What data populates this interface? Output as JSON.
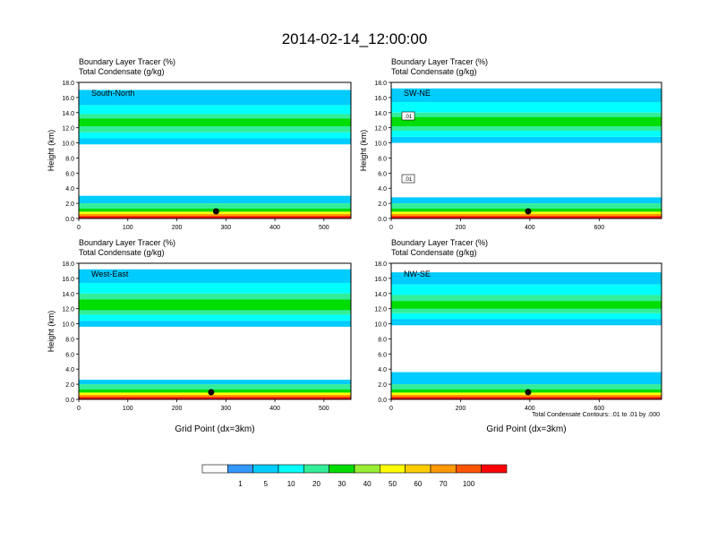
{
  "figure": {
    "title": "2014-02-14_12:00:00",
    "x_axis_label": "Grid Point (dx=3km)",
    "contour_note": "Total Condensate Contours: .01 to .01 by .000",
    "colorbar": {
      "levels": [
        "1",
        "5",
        "10",
        "20",
        "30",
        "40",
        "50",
        "60",
        "70",
        "100"
      ],
      "colors": [
        "#ffffff",
        "#3399ff",
        "#00ccff",
        "#00ffff",
        "#33ee99",
        "#00dd00",
        "#99ee33",
        "#ffff00",
        "#ffcc00",
        "#ff9900",
        "#ff5500",
        "#ff0000"
      ]
    }
  },
  "chart_data": [
    {
      "type": "heatmap",
      "title": "South-North",
      "title_line1": "Boundary Layer Tracer   (%)",
      "title_line2": "Total Condensate   (g/kg)",
      "ylabel": "Height (km)",
      "xlabel": "",
      "xlim": [
        0,
        555
      ],
      "ylim": [
        0,
        18
      ],
      "x_ticks": [
        "0",
        "100",
        "200",
        "300",
        "400",
        "500"
      ],
      "y_ticks": [
        "0.0",
        "2.0",
        "4.0",
        "6.0",
        "8.0",
        "10.0",
        "12.0",
        "14.0",
        "16.0",
        "18.0"
      ],
      "marker_x": 280,
      "contour_labels": [],
      "bands": [
        {
          "y": [
            0,
            0.3
          ],
          "value": 100
        },
        {
          "y": [
            0.3,
            0.6
          ],
          "value": 70
        },
        {
          "y": [
            0.6,
            0.9
          ],
          "value": 50
        },
        {
          "y": [
            0.9,
            1.3
          ],
          "value": 30
        },
        {
          "y": [
            1.3,
            2.0
          ],
          "value": 20
        },
        {
          "y": [
            2.0,
            3.0
          ],
          "value": 5
        },
        {
          "y": [
            9.8,
            10.6
          ],
          "value": 5
        },
        {
          "y": [
            10.6,
            11.4
          ],
          "value": 10
        },
        {
          "y": [
            11.4,
            13.8
          ],
          "value": 20
        },
        {
          "y": [
            12.2,
            13.2
          ],
          "value": 30
        },
        {
          "y": [
            13.8,
            15.0
          ],
          "value": 10
        },
        {
          "y": [
            15.0,
            17.0
          ],
          "value": 5
        }
      ]
    },
    {
      "type": "heatmap",
      "title": "SW-NE",
      "title_line1": "Boundary Layer Tracer   (%)",
      "title_line2": "Total Condensate   (g/kg)",
      "ylabel": "Height (km)",
      "xlabel": "",
      "xlim": [
        0,
        780
      ],
      "ylim": [
        0,
        18
      ],
      "x_ticks": [
        "0",
        "200",
        "400",
        "600"
      ],
      "y_ticks": [
        "0.0",
        "2.0",
        "4.0",
        "6.0",
        "8.0",
        "10.0",
        "12.0",
        "14.0",
        "16.0",
        "18.0"
      ],
      "marker_x": 395,
      "contour_labels": [
        ".01",
        ".01"
      ],
      "bands": [
        {
          "y": [
            0,
            0.3
          ],
          "value": 100
        },
        {
          "y": [
            0.3,
            0.6
          ],
          "value": 70
        },
        {
          "y": [
            0.6,
            0.9
          ],
          "value": 50
        },
        {
          "y": [
            0.9,
            1.3
          ],
          "value": 30
        },
        {
          "y": [
            1.3,
            2.0
          ],
          "value": 20
        },
        {
          "y": [
            2.0,
            2.8
          ],
          "value": 5
        },
        {
          "y": [
            10.0,
            10.8
          ],
          "value": 5
        },
        {
          "y": [
            10.8,
            11.6
          ],
          "value": 10
        },
        {
          "y": [
            11.6,
            14.0
          ],
          "value": 20
        },
        {
          "y": [
            12.2,
            13.4
          ],
          "value": 30
        },
        {
          "y": [
            14.0,
            15.4
          ],
          "value": 10
        },
        {
          "y": [
            15.4,
            17.2
          ],
          "value": 5
        }
      ]
    },
    {
      "type": "heatmap",
      "title": "West-East",
      "title_line1": "Boundary Layer Tracer   (%)",
      "title_line2": "Total Condensate   (g/kg)",
      "ylabel": "Height (km)",
      "xlabel": "Grid Point (dx=3km)",
      "xlim": [
        0,
        555
      ],
      "ylim": [
        0,
        18
      ],
      "x_ticks": [
        "0",
        "100",
        "200",
        "300",
        "400",
        "500"
      ],
      "y_ticks": [
        "0.0",
        "2.0",
        "4.0",
        "6.0",
        "8.0",
        "10.0",
        "12.0",
        "14.0",
        "16.0",
        "18.0"
      ],
      "marker_x": 270,
      "contour_labels": [],
      "bands": [
        {
          "y": [
            0,
            0.3
          ],
          "value": 100
        },
        {
          "y": [
            0.3,
            0.6
          ],
          "value": 70
        },
        {
          "y": [
            0.6,
            0.9
          ],
          "value": 50
        },
        {
          "y": [
            0.9,
            1.3
          ],
          "value": 30
        },
        {
          "y": [
            1.3,
            2.0
          ],
          "value": 20
        },
        {
          "y": [
            2.0,
            2.6
          ],
          "value": 5
        },
        {
          "y": [
            9.6,
            10.4
          ],
          "value": 5
        },
        {
          "y": [
            10.4,
            11.2
          ],
          "value": 10
        },
        {
          "y": [
            11.2,
            14.0
          ],
          "value": 20
        },
        {
          "y": [
            11.8,
            13.2
          ],
          "value": 30
        },
        {
          "y": [
            14.0,
            15.4
          ],
          "value": 10
        },
        {
          "y": [
            15.4,
            17.2
          ],
          "value": 5
        }
      ]
    },
    {
      "type": "heatmap",
      "title": "NW-SE",
      "title_line1": "Boundary Layer Tracer   (%)",
      "title_line2": "Total Condensate   (g/kg)",
      "ylabel": "",
      "xlabel": "Grid Point (dx=3km)",
      "xlim": [
        0,
        780
      ],
      "ylim": [
        0,
        18
      ],
      "x_ticks": [
        "0",
        "200",
        "400",
        "600"
      ],
      "y_ticks": [
        "0.0",
        "2.0",
        "4.0",
        "6.0",
        "8.0",
        "10.0",
        "12.0",
        "14.0",
        "16.0",
        "18.0"
      ],
      "marker_x": 395,
      "contour_labels": [],
      "bands": [
        {
          "y": [
            0,
            0.3
          ],
          "value": 100
        },
        {
          "y": [
            0.3,
            0.6
          ],
          "value": 70
        },
        {
          "y": [
            0.6,
            0.9
          ],
          "value": 50
        },
        {
          "y": [
            0.9,
            1.3
          ],
          "value": 30
        },
        {
          "y": [
            1.3,
            2.0
          ],
          "value": 20
        },
        {
          "y": [
            2.0,
            3.6
          ],
          "value": 5
        },
        {
          "y": [
            9.8,
            10.6
          ],
          "value": 5
        },
        {
          "y": [
            10.6,
            11.4
          ],
          "value": 10
        },
        {
          "y": [
            11.4,
            13.8
          ],
          "value": 20
        },
        {
          "y": [
            12.0,
            13.0
          ],
          "value": 30
        },
        {
          "y": [
            13.8,
            15.2
          ],
          "value": 10
        },
        {
          "y": [
            15.2,
            16.8
          ],
          "value": 5
        }
      ]
    }
  ]
}
